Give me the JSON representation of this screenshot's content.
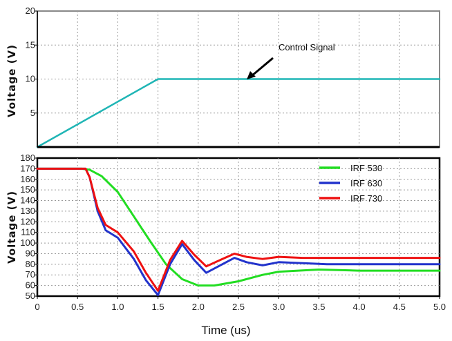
{
  "chart_data": [
    {
      "type": "line",
      "ylabel": "Voltage (V)",
      "xlabel": "",
      "xlim": [
        0,
        5
      ],
      "ylim": [
        0,
        20
      ],
      "y_ticks": [
        "5",
        "10",
        "15",
        "20"
      ],
      "grid": true,
      "annotation": "Control Signal",
      "series": [
        {
          "color": "#1fb5b5",
          "x": [
            0,
            1.5,
            5.0
          ],
          "y": [
            0,
            10,
            10
          ]
        }
      ]
    },
    {
      "type": "line",
      "ylabel": "Voltage (V)",
      "xlabel": "Time (us)",
      "xlim": [
        0,
        5
      ],
      "ylim": [
        50,
        180
      ],
      "y_ticks": [
        "50",
        "60",
        "70",
        "80",
        "90",
        "100",
        "110",
        "120",
        "130",
        "140",
        "150",
        "160",
        "170",
        "180"
      ],
      "x_ticks": [
        "0",
        "0.5",
        "1.0",
        "1.5",
        "2.0",
        "2.5",
        "3.0",
        "3.5",
        "4.0",
        "4.5",
        "5.0"
      ],
      "grid": true,
      "legend": "top-right",
      "series": [
        {
          "name": "IRF 530",
          "color": "#22dd22",
          "x": [
            0,
            0.55,
            0.65,
            0.8,
            1.0,
            1.2,
            1.4,
            1.6,
            1.8,
            2.0,
            2.2,
            2.5,
            2.8,
            3.0,
            3.5,
            4.0,
            4.5,
            5.0
          ],
          "y": [
            170,
            170,
            169,
            163,
            148,
            125,
            102,
            80,
            66,
            60,
            60,
            64,
            70,
            73,
            75,
            74,
            74,
            74
          ]
        },
        {
          "name": "IRF 630",
          "color": "#2233cc",
          "x": [
            0,
            0.6,
            0.65,
            0.75,
            0.85,
            1.0,
            1.2,
            1.35,
            1.5,
            1.65,
            1.8,
            1.95,
            2.1,
            2.3,
            2.45,
            2.6,
            2.8,
            3.0,
            3.3,
            3.6,
            4.0,
            4.5,
            5.0
          ],
          "y": [
            170,
            170,
            162,
            130,
            112,
            105,
            85,
            65,
            51,
            80,
            99,
            84,
            72,
            80,
            86,
            82,
            79,
            82,
            81,
            80,
            80,
            80,
            80
          ]
        },
        {
          "name": "IRF 730",
          "color": "#ee1111",
          "x": [
            0,
            0.6,
            0.65,
            0.75,
            0.85,
            1.0,
            1.2,
            1.35,
            1.5,
            1.65,
            1.8,
            1.95,
            2.1,
            2.3,
            2.45,
            2.6,
            2.8,
            3.0,
            3.3,
            3.6,
            4.0,
            4.5,
            5.0
          ],
          "y": [
            170,
            170,
            162,
            133,
            117,
            110,
            92,
            72,
            55,
            84,
            102,
            89,
            78,
            85,
            90,
            87,
            85,
            87,
            86,
            86,
            86,
            86,
            86
          ]
        }
      ]
    }
  ],
  "colors": {
    "grid": "#9a9a9a",
    "axis": "#000000",
    "top_frame": "#888888"
  }
}
